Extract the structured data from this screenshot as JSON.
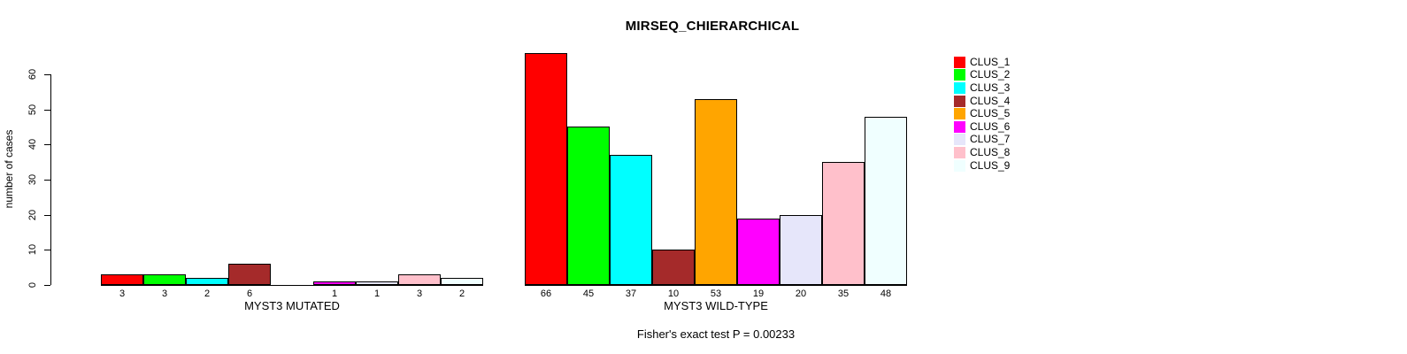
{
  "title": "MIRSEQ_CHIERARCHICAL",
  "chart_data": {
    "type": "bar",
    "title": "MIRSEQ_CHIERARCHICAL",
    "ylabel": "number of cases",
    "ylim": [
      0,
      60
    ],
    "yticks": [
      0,
      10,
      20,
      30,
      40,
      50,
      60
    ],
    "grid": false,
    "legend_position": "top-right",
    "legend": [
      "CLUS_1",
      "CLUS_2",
      "CLUS_3",
      "CLUS_4",
      "CLUS_5",
      "CLUS_6",
      "CLUS_7",
      "CLUS_8",
      "CLUS_9"
    ],
    "series_colors": [
      "#FF0000",
      "#00FF00",
      "#00FFFF",
      "#A52A2A",
      "#FFA500",
      "#FF00FF",
      "#E6E6FA",
      "#FFC0CB",
      "#F0FFFF"
    ],
    "groups": [
      {
        "label": "MYST3 MUTATED",
        "values": [
          3,
          3,
          2,
          6,
          0,
          1,
          1,
          3,
          2
        ],
        "bar_labels": [
          "3",
          "3",
          "2",
          "6",
          "",
          "1",
          "1",
          "3",
          "2"
        ]
      },
      {
        "label": "MYST3 WILD-TYPE",
        "values": [
          66,
          45,
          37,
          10,
          53,
          19,
          20,
          35,
          48
        ],
        "bar_labels": [
          "66",
          "45",
          "37",
          "10",
          "53",
          "19",
          "20",
          "35",
          "48"
        ]
      }
    ],
    "annotation": "Fisher's exact test P = 0.00233"
  }
}
